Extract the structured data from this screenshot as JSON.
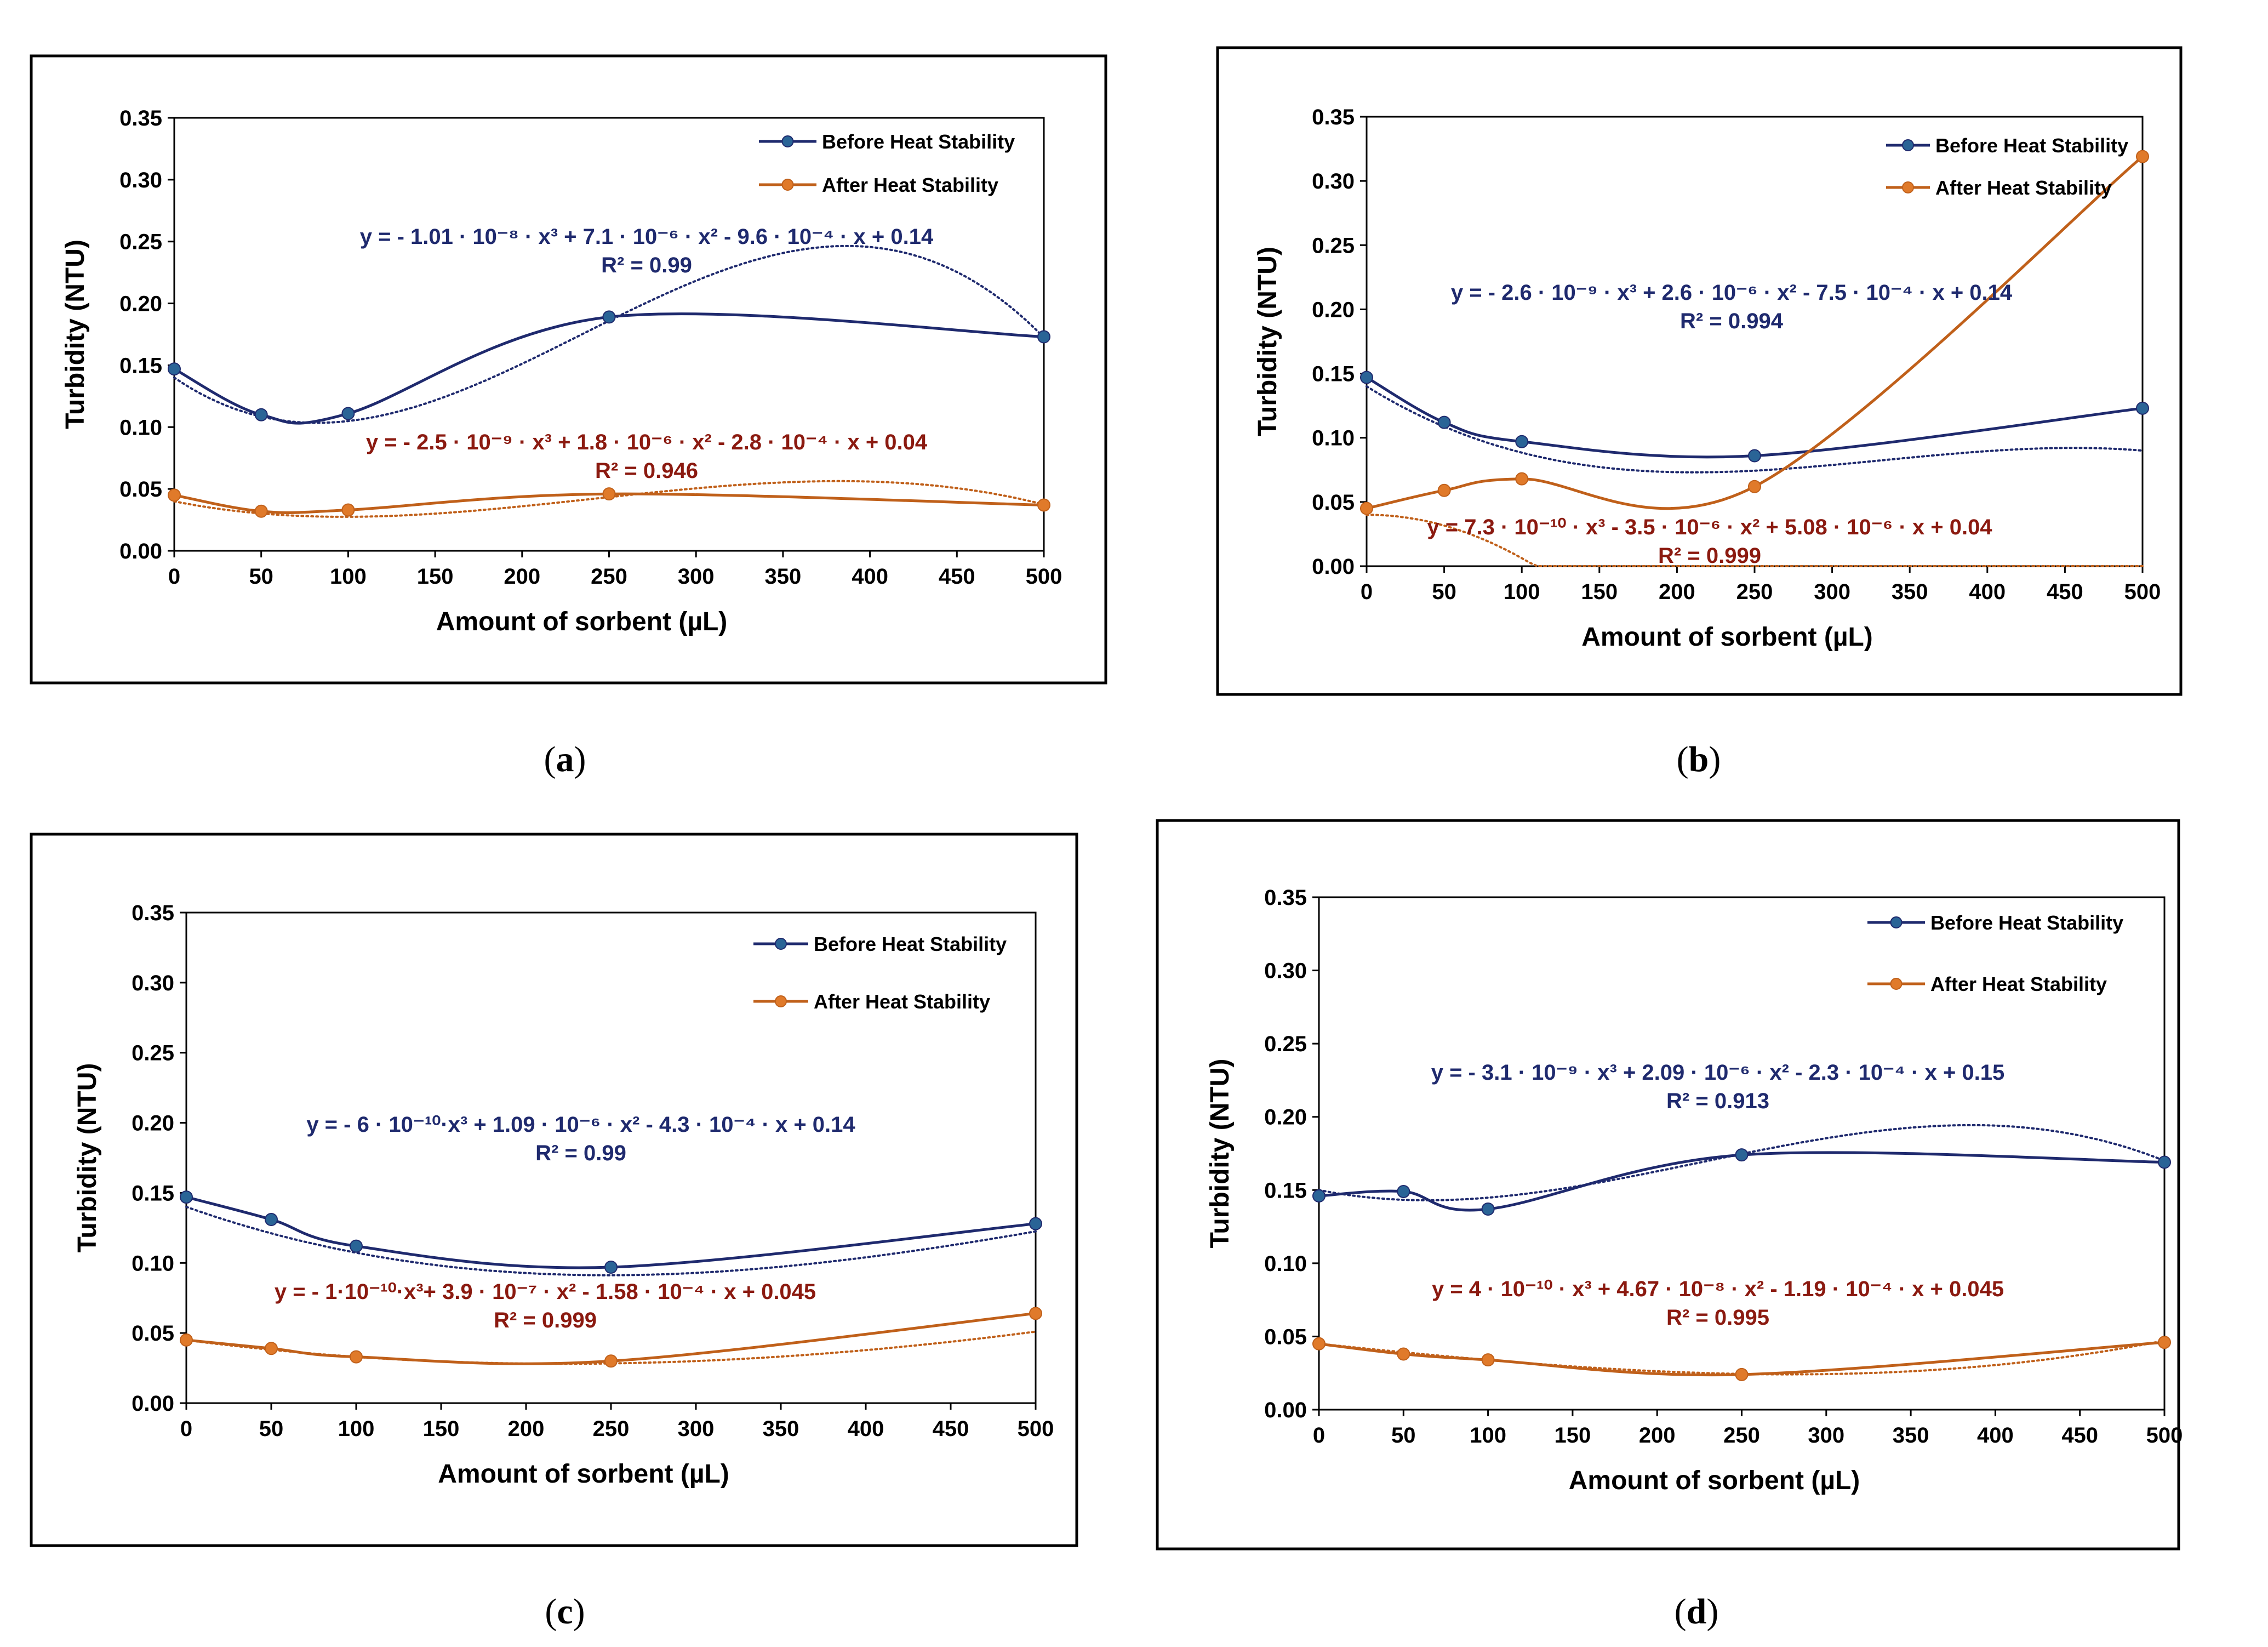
{
  "legend_labels": {
    "before": "Before Heat Stability",
    "after": "After Heat Stability"
  },
  "colors": {
    "before": "#1f2a6e",
    "after": "#c0601a",
    "eq_before": "#1f2a6e",
    "eq_after": "#8b1a10",
    "axis": "#000000"
  },
  "chart_data": [
    {
      "id": "a",
      "caption": "a",
      "type": "line",
      "xlabel": "Amount of sorbent (µL)",
      "ylabel": "Turbidity (NTU)",
      "x_ticks": [
        "0",
        "50",
        "100",
        "150",
        "200",
        "250",
        "300",
        "350",
        "400",
        "450",
        "500"
      ],
      "y_ticks": [
        "0.00",
        "0.05",
        "0.10",
        "0.15",
        "0.20",
        "0.25",
        "0.30",
        "0.35"
      ],
      "xlim": [
        0,
        500
      ],
      "ylim": [
        0,
        0.35
      ],
      "x_scale": "linear",
      "series": [
        {
          "name": "Before Heat Stability",
          "key": "before",
          "x": [
            0,
            50,
            100,
            250,
            500
          ],
          "values": [
            0.147,
            0.11,
            0.111,
            0.189,
            0.173
          ]
        },
        {
          "name": "After Heat Stability",
          "key": "after",
          "x": [
            0,
            50,
            100,
            250,
            500
          ],
          "values": [
            0.045,
            0.032,
            0.033,
            0.046,
            0.037
          ]
        }
      ],
      "trendlines": [
        {
          "key": "before",
          "coef": [
            0.14,
            -0.00096,
            7.1e-06,
            -1.01e-08
          ]
        },
        {
          "key": "after",
          "coef": [
            0.04,
            -0.00028,
            1.8e-06,
            -2.5e-09
          ]
        }
      ],
      "equations": {
        "before": {
          "eq": "y = - 1.01 · 10⁻⁸ · x³ + 7.1 · 10⁻⁶ · x² - 9.6 · 10⁻⁴ · x + 0.14",
          "r2": "R² = 0.99"
        },
        "after": {
          "eq": "y = - 2.5 · 10⁻⁹ · x³ + 1.8 · 10⁻⁶ · x² - 2.8 · 10⁻⁴ · x + 0.04",
          "r2": "R² = 0.946"
        }
      }
    },
    {
      "id": "b",
      "caption": "b",
      "type": "line",
      "xlabel": "Amount of sorbent (µL)",
      "ylabel": "Turbidity (NTU)",
      "x_ticks": [
        "0",
        "50",
        "100",
        "150",
        "200",
        "250",
        "300",
        "350",
        "400",
        "450",
        "500"
      ],
      "y_ticks": [
        "0.00",
        "0.05",
        "0.10",
        "0.15",
        "0.20",
        "0.25",
        "0.30",
        "0.35"
      ],
      "xlim": [
        0,
        500
      ],
      "ylim": [
        0,
        0.35
      ],
      "x_scale": "linear",
      "series": [
        {
          "name": "Before Heat Stability",
          "key": "before",
          "x": [
            0,
            50,
            100,
            250,
            500
          ],
          "values": [
            0.147,
            0.112,
            0.097,
            0.086,
            0.123
          ]
        },
        {
          "name": "After Heat Stability",
          "key": "after",
          "x": [
            0,
            50,
            100,
            250,
            500
          ],
          "values": [
            0.045,
            0.059,
            0.068,
            0.062,
            0.319
          ]
        }
      ],
      "trendlines": [
        {
          "key": "before",
          "coef": [
            0.14,
            -0.00075,
            2.6e-06,
            -2.6e-09
          ]
        },
        {
          "key": "after",
          "coef": [
            0.04,
            5.08e-06,
            -3.5e-06,
            7.3e-10
          ]
        }
      ],
      "equations": {
        "before": {
          "eq": "y = - 2.6 · 10⁻⁹ · x³ + 2.6 · 10⁻⁶ · x² - 7.5 · 10⁻⁴ · x + 0.14",
          "r2": "R² = 0.994"
        },
        "after": {
          "eq": "y = 7.3 · 10⁻¹⁰ · x³ - 3.5 · 10⁻⁶ · x² + 5.08 · 10⁻⁶ · x + 0.04",
          "r2": "R² = 0.999"
        }
      }
    },
    {
      "id": "c",
      "caption": "c",
      "type": "line",
      "xlabel": "Amount of sorbent (µL)",
      "ylabel": "Turbidity (NTU)",
      "x_ticks": [
        "0",
        "50",
        "100",
        "150",
        "200",
        "250",
        "300",
        "350",
        "400",
        "450",
        "500"
      ],
      "y_ticks": [
        "0.00",
        "0.05",
        "0.10",
        "0.15",
        "0.20",
        "0.25",
        "0.30",
        "0.35"
      ],
      "xlim": [
        0,
        500
      ],
      "ylim": [
        0,
        0.35
      ],
      "x_scale": "linear",
      "series": [
        {
          "name": "Before Heat Stability",
          "key": "before",
          "x": [
            0,
            50,
            100,
            250,
            500
          ],
          "values": [
            0.147,
            0.131,
            0.112,
            0.097,
            0.128
          ]
        },
        {
          "name": "After Heat Stability",
          "key": "after",
          "x": [
            0,
            50,
            100,
            250,
            500
          ],
          "values": [
            0.045,
            0.039,
            0.033,
            0.03,
            0.064
          ]
        }
      ],
      "trendlines": [
        {
          "key": "before",
          "coef": [
            0.14,
            -0.00043,
            1.09e-06,
            -6e-10
          ]
        },
        {
          "key": "after",
          "coef": [
            0.045,
            -0.000158,
            3.9e-07,
            -1e-10
          ]
        }
      ],
      "equations": {
        "before": {
          "eq": "y = - 6 · 10⁻¹⁰·x³ + 1.09 · 10⁻⁶ · x² - 4.3 · 10⁻⁴ · x + 0.14",
          "r2": "R² = 0.99"
        },
        "after": {
          "eq": "y = - 1·10⁻¹⁰·x³+ 3.9 · 10⁻⁷ · x² - 1.58 · 10⁻⁴ · x + 0.045",
          "r2": "R² = 0.999"
        }
      }
    },
    {
      "id": "d",
      "caption": "d",
      "type": "line",
      "xlabel": "Amount of sorbent (µL)",
      "ylabel": "Turbidity (NTU)",
      "x_ticks": [
        "0",
        "50",
        "100",
        "150",
        "200",
        "250",
        "300",
        "350",
        "400",
        "450",
        "500"
      ],
      "y_ticks": [
        "0.00",
        "0.05",
        "0.10",
        "0.15",
        "0.20",
        "0.25",
        "0.30",
        "0.35"
      ],
      "xlim": [
        0,
        500
      ],
      "ylim": [
        0,
        0.35
      ],
      "x_scale": "linear",
      "series": [
        {
          "name": "Before Heat Stability",
          "key": "before",
          "x": [
            0,
            50,
            100,
            250,
            500
          ],
          "values": [
            0.146,
            0.149,
            0.137,
            0.174,
            0.169
          ]
        },
        {
          "name": "After Heat Stability",
          "key": "after",
          "x": [
            0,
            50,
            100,
            250,
            500
          ],
          "values": [
            0.045,
            0.038,
            0.034,
            0.024,
            0.046
          ]
        }
      ],
      "trendlines": [
        {
          "key": "before",
          "coef": [
            0.15,
            -0.00023,
            2.09e-06,
            -3.1e-09
          ]
        },
        {
          "key": "after",
          "coef": [
            0.045,
            -0.000119,
            4.67e-08,
            4e-10
          ]
        }
      ],
      "equations": {
        "before": {
          "eq": "y = - 3.1 · 10⁻⁹ · x³ + 2.09 · 10⁻⁶ · x² - 2.3 · 10⁻⁴ · x + 0.15",
          "r2": "R² = 0.913"
        },
        "after": {
          "eq": "y = 4 · 10⁻¹⁰ · x³ + 4.67 · 10⁻⁸ · x² - 1.19 · 10⁻⁴ · x + 0.045",
          "r2": "R² = 0.995"
        }
      }
    }
  ]
}
